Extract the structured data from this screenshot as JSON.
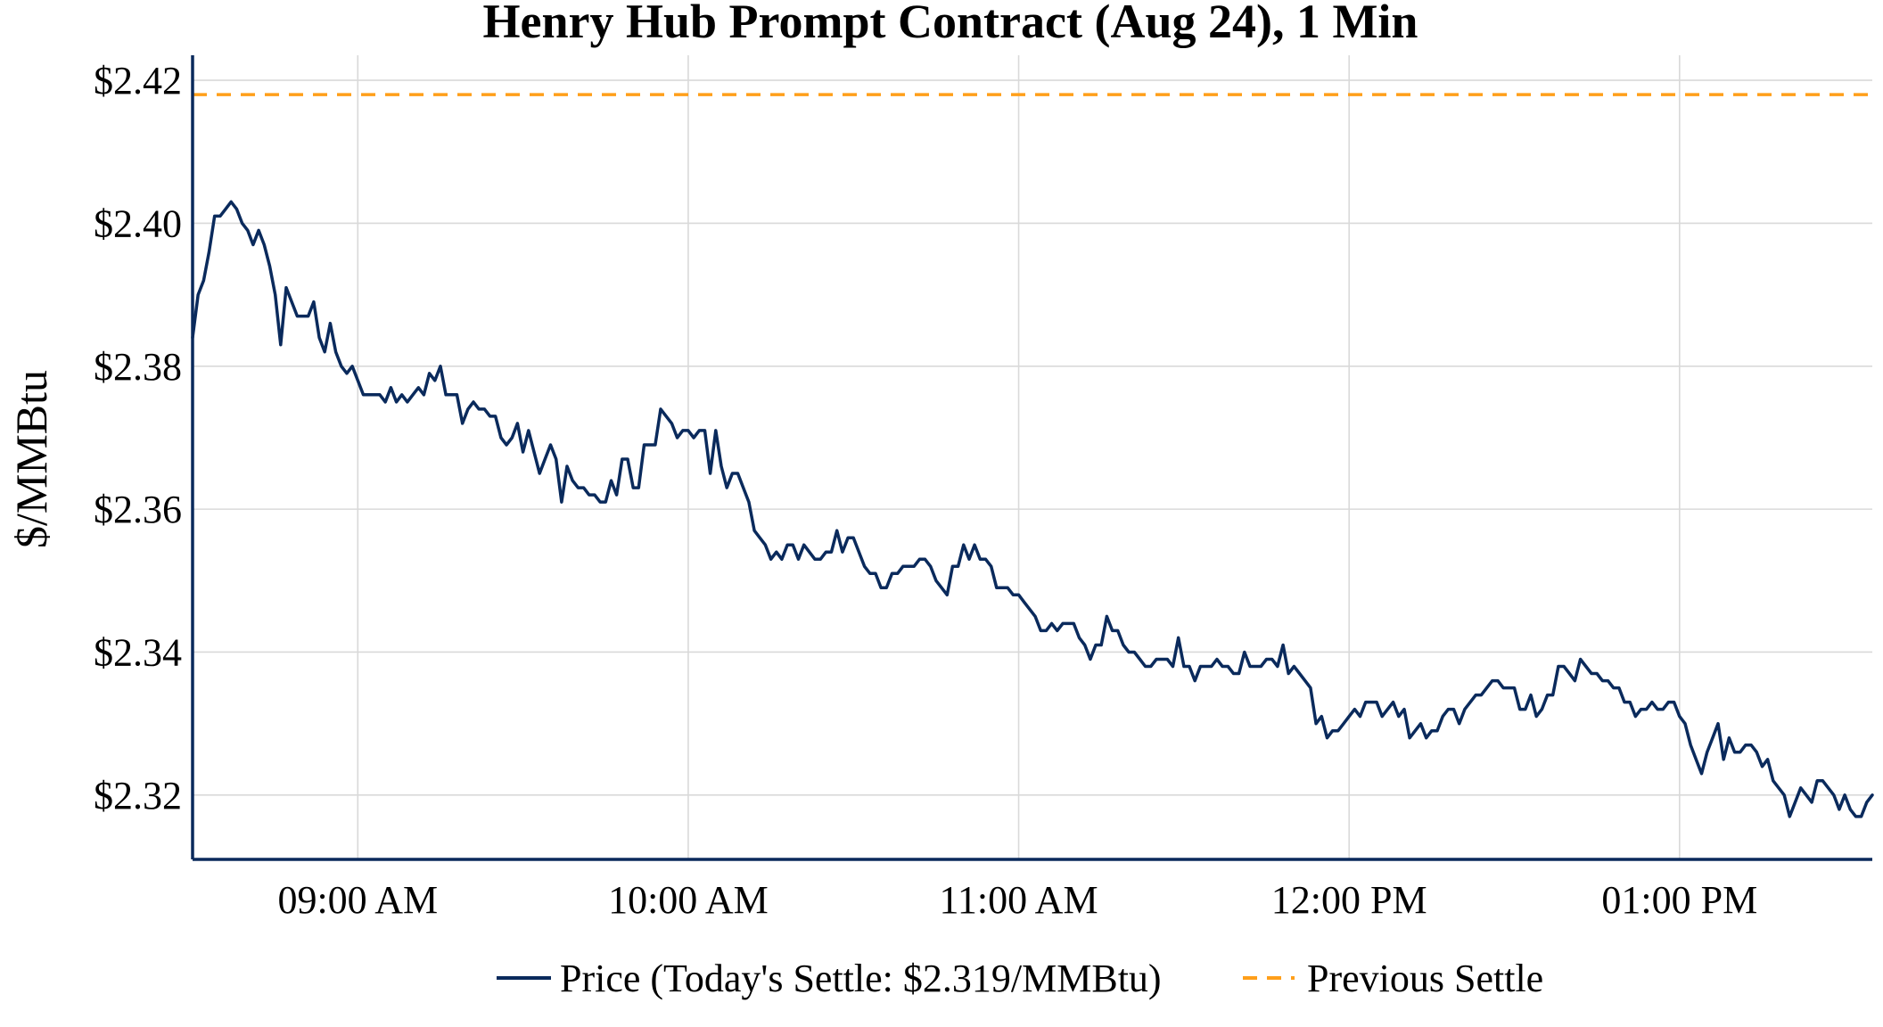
{
  "chart_data": {
    "type": "line",
    "title": "Henry Hub Prompt Contract (Aug 24), 1 Min",
    "xlabel": "",
    "ylabel": "$/MMBtu",
    "x_tick_labels": [
      "09:00 AM",
      "10:00 AM",
      "11:00 AM",
      "12:00 PM",
      "01:00 PM"
    ],
    "x_tick_minutes": [
      540,
      600,
      660,
      720,
      780
    ],
    "xlim_minutes": [
      510,
      815
    ],
    "y_tick_values": [
      2.32,
      2.34,
      2.36,
      2.38,
      2.4,
      2.42
    ],
    "y_tick_labels": [
      "$2.32",
      "$2.34",
      "$2.36",
      "$2.38",
      "$2.40",
      "$2.42"
    ],
    "ylim": [
      2.311,
      2.4235
    ],
    "grid": true,
    "legend_position": "bottom",
    "series": [
      {
        "name": "Price (Today's Settle: $2.319/MMBtu)",
        "color": "#0a2a5c",
        "style": "solid",
        "start_minute": 510,
        "step_minutes": 1,
        "values": [
          2.384,
          2.39,
          2.392,
          2.396,
          2.401,
          2.401,
          2.402,
          2.403,
          2.402,
          2.4,
          2.399,
          2.397,
          2.399,
          2.397,
          2.394,
          2.39,
          2.383,
          2.391,
          2.389,
          2.387,
          2.387,
          2.387,
          2.389,
          2.384,
          2.382,
          2.386,
          2.382,
          2.38,
          2.379,
          2.38,
          2.378,
          2.376,
          2.376,
          2.376,
          2.376,
          2.375,
          2.377,
          2.375,
          2.376,
          2.375,
          2.376,
          2.377,
          2.376,
          2.379,
          2.378,
          2.38,
          2.376,
          2.376,
          2.376,
          2.372,
          2.374,
          2.375,
          2.374,
          2.374,
          2.373,
          2.373,
          2.37,
          2.369,
          2.37,
          2.372,
          2.368,
          2.371,
          2.368,
          2.365,
          2.367,
          2.369,
          2.367,
          2.361,
          2.366,
          2.364,
          2.363,
          2.363,
          2.362,
          2.362,
          2.361,
          2.361,
          2.364,
          2.362,
          2.367,
          2.367,
          2.363,
          2.363,
          2.369,
          2.369,
          2.369,
          2.374,
          2.373,
          2.372,
          2.37,
          2.371,
          2.371,
          2.37,
          2.371,
          2.371,
          2.365,
          2.371,
          2.366,
          2.363,
          2.365,
          2.365,
          2.363,
          2.361,
          2.357,
          2.356,
          2.355,
          2.353,
          2.354,
          2.353,
          2.355,
          2.355,
          2.353,
          2.355,
          2.354,
          2.353,
          2.353,
          2.354,
          2.354,
          2.357,
          2.354,
          2.356,
          2.356,
          2.354,
          2.352,
          2.351,
          2.351,
          2.349,
          2.349,
          2.351,
          2.351,
          2.352,
          2.352,
          2.352,
          2.353,
          2.353,
          2.352,
          2.35,
          2.349,
          2.348,
          2.352,
          2.352,
          2.355,
          2.353,
          2.355,
          2.353,
          2.353,
          2.352,
          2.349,
          2.349,
          2.349,
          2.348,
          2.348,
          2.347,
          2.346,
          2.345,
          2.343,
          2.343,
          2.344,
          2.343,
          2.344,
          2.344,
          2.344,
          2.342,
          2.341,
          2.339,
          2.341,
          2.341,
          2.345,
          2.343,
          2.343,
          2.341,
          2.34,
          2.34,
          2.339,
          2.338,
          2.338,
          2.339,
          2.339,
          2.339,
          2.338,
          2.342,
          2.338,
          2.338,
          2.336,
          2.338,
          2.338,
          2.338,
          2.339,
          2.338,
          2.338,
          2.337,
          2.337,
          2.34,
          2.338,
          2.338,
          2.338,
          2.339,
          2.339,
          2.338,
          2.341,
          2.337,
          2.338,
          2.337,
          2.336,
          2.335,
          2.33,
          2.331,
          2.328,
          2.329,
          2.329,
          2.33,
          2.331,
          2.332,
          2.331,
          2.333,
          2.333,
          2.333,
          2.331,
          2.332,
          2.333,
          2.331,
          2.332,
          2.328,
          2.329,
          2.33,
          2.328,
          2.329,
          2.329,
          2.331,
          2.332,
          2.332,
          2.33,
          2.332,
          2.333,
          2.334,
          2.334,
          2.335,
          2.336,
          2.336,
          2.335,
          2.335,
          2.335,
          2.332,
          2.332,
          2.334,
          2.331,
          2.332,
          2.334,
          2.334,
          2.338,
          2.338,
          2.337,
          2.336,
          2.339,
          2.338,
          2.337,
          2.337,
          2.336,
          2.336,
          2.335,
          2.335,
          2.333,
          2.333,
          2.331,
          2.332,
          2.332,
          2.333,
          2.332,
          2.332,
          2.333,
          2.333,
          2.331,
          2.33,
          2.327,
          2.325,
          2.323,
          2.326,
          2.328,
          2.33,
          2.325,
          2.328,
          2.326,
          2.326,
          2.327,
          2.327,
          2.326,
          2.324,
          2.325,
          2.322,
          2.321,
          2.32,
          2.317,
          2.319,
          2.321,
          2.32,
          2.319,
          2.322,
          2.322,
          2.321,
          2.32,
          2.318,
          2.32,
          2.318,
          2.317,
          2.317,
          2.319,
          2.32
        ]
      },
      {
        "name": "Previous Settle",
        "color": "#ff9f1a",
        "style": "dashed",
        "value": 2.418
      }
    ]
  }
}
